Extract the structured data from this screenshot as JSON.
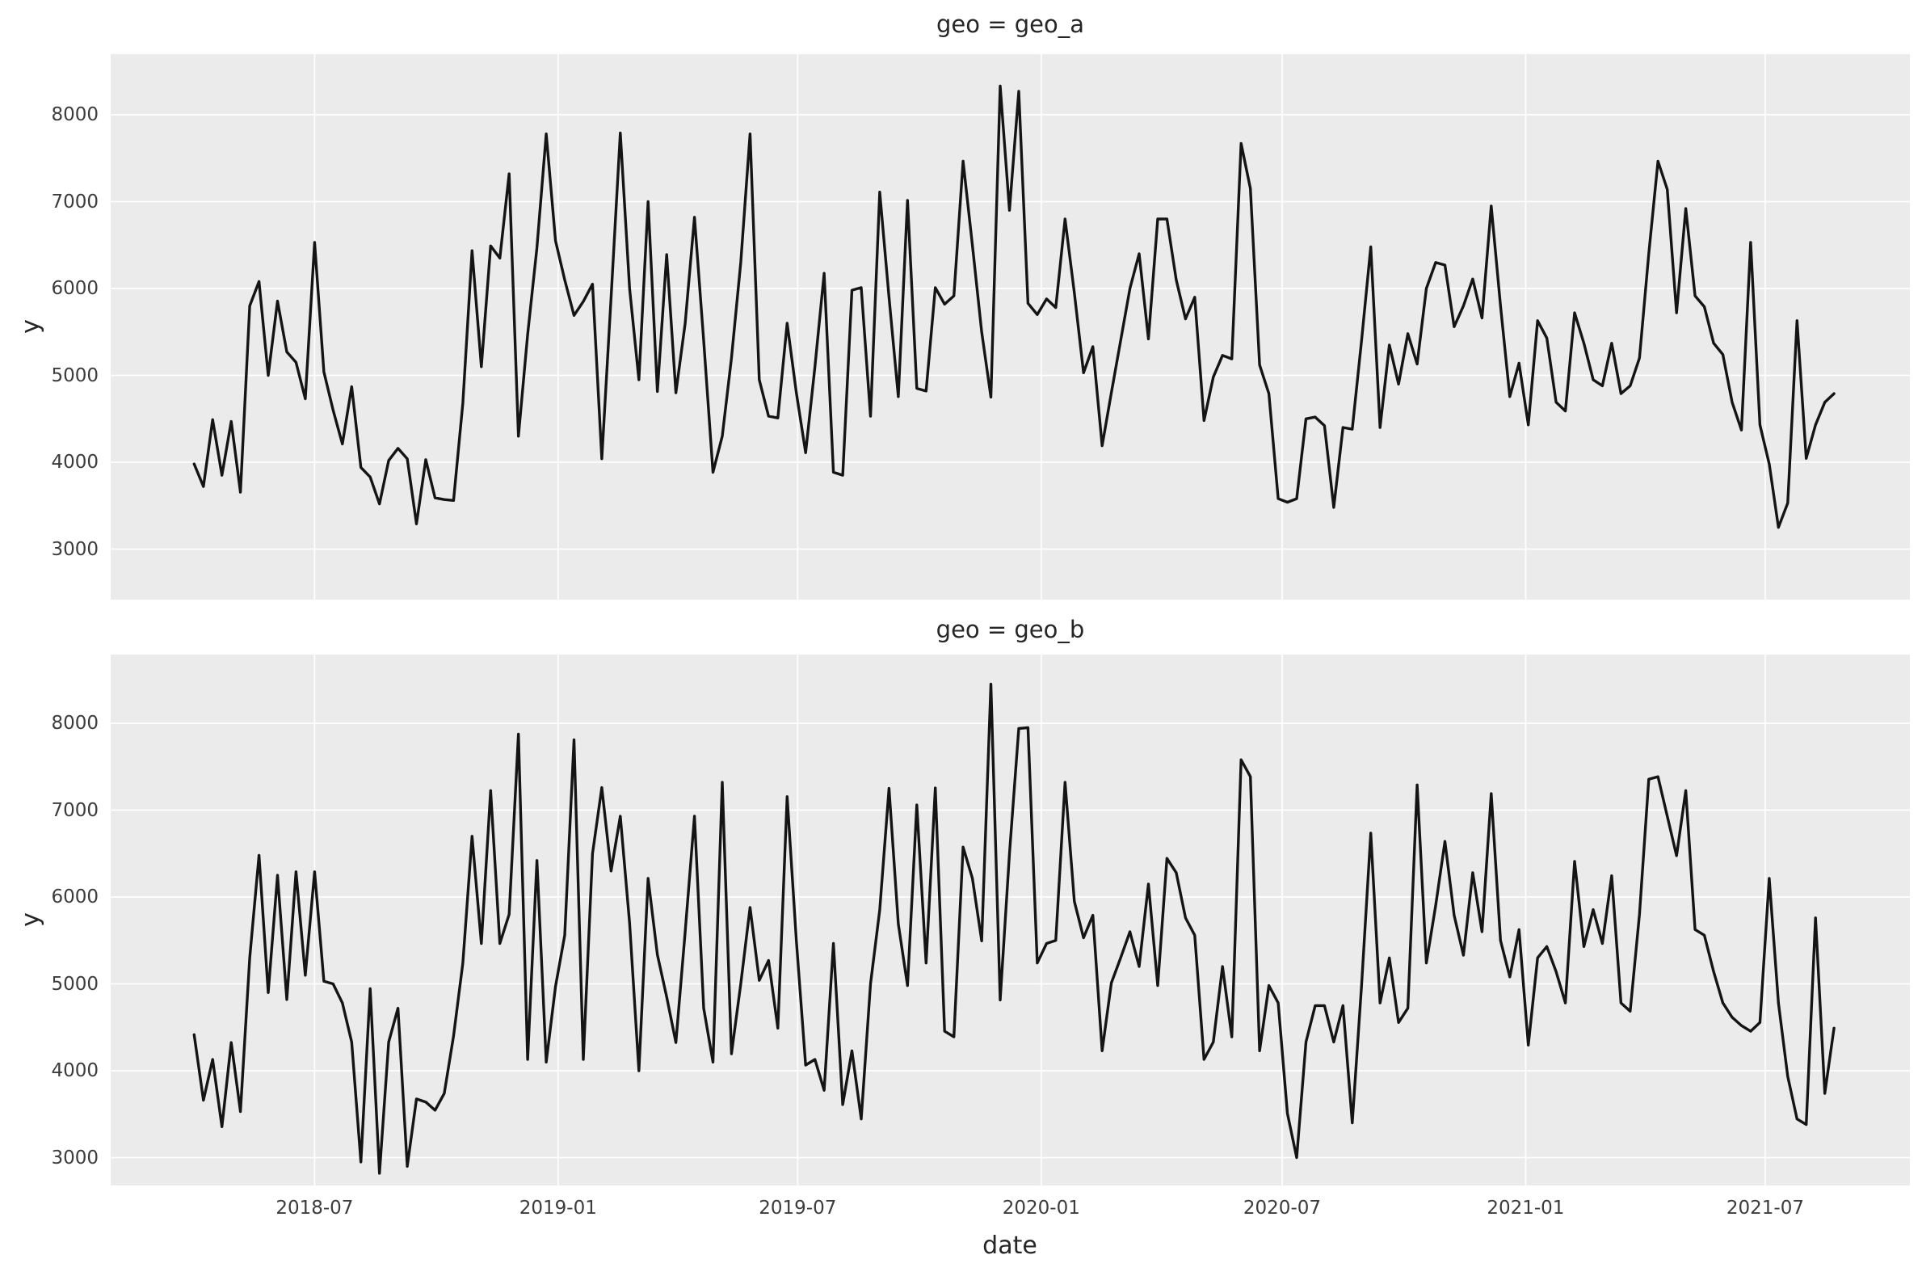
{
  "figure": {
    "background": "#ffffff",
    "plot_background": "#ebebeb",
    "grid_color": "#ffffff",
    "line_color": "#141414",
    "title_color": "#262626",
    "tick_color": "#3c3c3c"
  },
  "chart_data": [
    {
      "type": "line",
      "title": "geo = geo_a",
      "facet_field": "geo",
      "facet_value": "geo_a",
      "ylabel": "y",
      "xlabel": "",
      "legend": "none",
      "grid": "on",
      "x_start": "2018-04-01",
      "x_freq_days": 7,
      "x_end": "2021-08-22",
      "x_tick_labels": [
        "2018-07",
        "2019-01",
        "2019-07",
        "2020-01",
        "2020-07",
        "2021-01",
        "2021-07"
      ],
      "x_tick_dates": [
        "2018-07-01",
        "2019-01-01",
        "2019-07-01",
        "2020-01-01",
        "2020-07-01",
        "2021-01-01",
        "2021-07-01"
      ],
      "y_ticks": [
        3000,
        4000,
        5000,
        6000,
        7000,
        8000
      ],
      "ylim": [
        2420,
        8700
      ],
      "values": [
        3980,
        3720,
        4490,
        3850,
        4470,
        3655,
        5800,
        6080,
        5000,
        5855,
        5270,
        5150,
        4730,
        6530,
        5040,
        4600,
        4210,
        4870,
        3940,
        3830,
        3520,
        4020,
        4160,
        4040,
        3290,
        4030,
        3590,
        3570,
        3560,
        4680,
        6435,
        5100,
        6490,
        6350,
        7320,
        4300,
        5470,
        6470,
        7780,
        6550,
        6100,
        5690,
        5850,
        6050,
        4040,
        5900,
        7790,
        6000,
        4950,
        7000,
        4815,
        6390,
        4800,
        5600,
        6820,
        5400,
        3885,
        4300,
        5200,
        6300,
        7780,
        4950,
        4530,
        4510,
        5600,
        4800,
        4110,
        5100,
        6175,
        3885,
        3850,
        5980,
        6010,
        4530,
        7110,
        5900,
        4755,
        7015,
        4850,
        4820,
        6010,
        5820,
        5915,
        7465,
        6500,
        5500,
        4750,
        8330,
        6900,
        8270,
        5830,
        5700,
        5880,
        5780,
        6800,
        5950,
        5030,
        5330,
        4190,
        4800,
        5400,
        6000,
        6400,
        5420,
        6800,
        6800,
        6100,
        5650,
        5900,
        4480,
        4980,
        5230,
        5190,
        7670,
        7150,
        5120,
        4790,
        3580,
        3540,
        3580,
        4500,
        4520,
        4420,
        3480,
        4400,
        4380,
        5400,
        6480,
        4400,
        5350,
        4900,
        5480,
        5130,
        6000,
        6300,
        6270,
        5560,
        5800,
        6110,
        5660,
        6950,
        5800,
        4755,
        5140,
        4430,
        5630,
        5430,
        4690,
        4590,
        5720,
        5370,
        4950,
        4880,
        5370,
        4790,
        4880,
        5200,
        6400,
        7465,
        7140,
        5720,
        6920,
        5915,
        5790,
        5370,
        5240,
        4690,
        4370,
        6530,
        4430,
        3980,
        3250,
        3530,
        5630,
        4045,
        4430,
        4690,
        4790
      ]
    },
    {
      "type": "line",
      "title": "geo = geo_b",
      "facet_field": "geo",
      "facet_value": "geo_b",
      "ylabel": "y",
      "xlabel": "date",
      "legend": "none",
      "grid": "on",
      "x_start": "2018-04-01",
      "x_freq_days": 7,
      "x_end": "2021-08-22",
      "x_tick_labels": [
        "2018-07",
        "2019-01",
        "2019-07",
        "2020-01",
        "2020-07",
        "2021-01",
        "2021-07"
      ],
      "x_tick_dates": [
        "2018-07-01",
        "2019-01-01",
        "2019-07-01",
        "2020-01-01",
        "2020-07-01",
        "2021-01-01",
        "2021-07-01"
      ],
      "y_ticks": [
        3000,
        4000,
        5000,
        6000,
        7000,
        8000
      ],
      "ylim": [
        2680,
        8790
      ],
      "values": [
        4415,
        3660,
        4130,
        3355,
        4325,
        3530,
        5300,
        6480,
        4900,
        6250,
        4820,
        6290,
        5100,
        6290,
        5030,
        5000,
        4780,
        4330,
        2950,
        4945,
        2820,
        4330,
        4720,
        2900,
        3675,
        3640,
        3545,
        3740,
        4400,
        5240,
        6700,
        5465,
        7225,
        5465,
        5800,
        7875,
        4130,
        6420,
        4100,
        4970,
        5560,
        7810,
        4130,
        6500,
        7260,
        6300,
        6930,
        5700,
        4000,
        6215,
        5335,
        4850,
        4325,
        5600,
        6930,
        4720,
        4100,
        7320,
        4195,
        5000,
        5880,
        5040,
        5270,
        4490,
        7155,
        5500,
        4065,
        4130,
        3775,
        5465,
        3610,
        4230,
        3445,
        5000,
        5850,
        7250,
        5690,
        4980,
        7060,
        5240,
        7255,
        4455,
        4390,
        6575,
        6215,
        5495,
        8450,
        4815,
        6500,
        7940,
        7950,
        5240,
        5465,
        5500,
        7320,
        5950,
        5530,
        5790,
        4230,
        5010,
        5300,
        5600,
        5200,
        6150,
        4980,
        6445,
        6280,
        5760,
        5560,
        4130,
        4330,
        5200,
        4390,
        7580,
        7385,
        4230,
        4980,
        4780,
        3510,
        3000,
        4330,
        4750,
        4750,
        4330,
        4750,
        3400,
        4980,
        6735,
        4780,
        5300,
        4555,
        4720,
        7290,
        5240,
        5900,
        6640,
        5790,
        5330,
        6280,
        5600,
        7190,
        5500,
        5080,
        5625,
        4295,
        5300,
        5430,
        5140,
        4780,
        6410,
        5430,
        5855,
        5465,
        6245,
        4780,
        4685,
        5800,
        7355,
        7385,
        6930,
        6475,
        7225,
        5625,
        5560,
        5140,
        4780,
        4615,
        4520,
        4455,
        4555,
        6215,
        4780,
        3935,
        3445,
        3380,
        5760,
        3740,
        4490
      ]
    }
  ]
}
